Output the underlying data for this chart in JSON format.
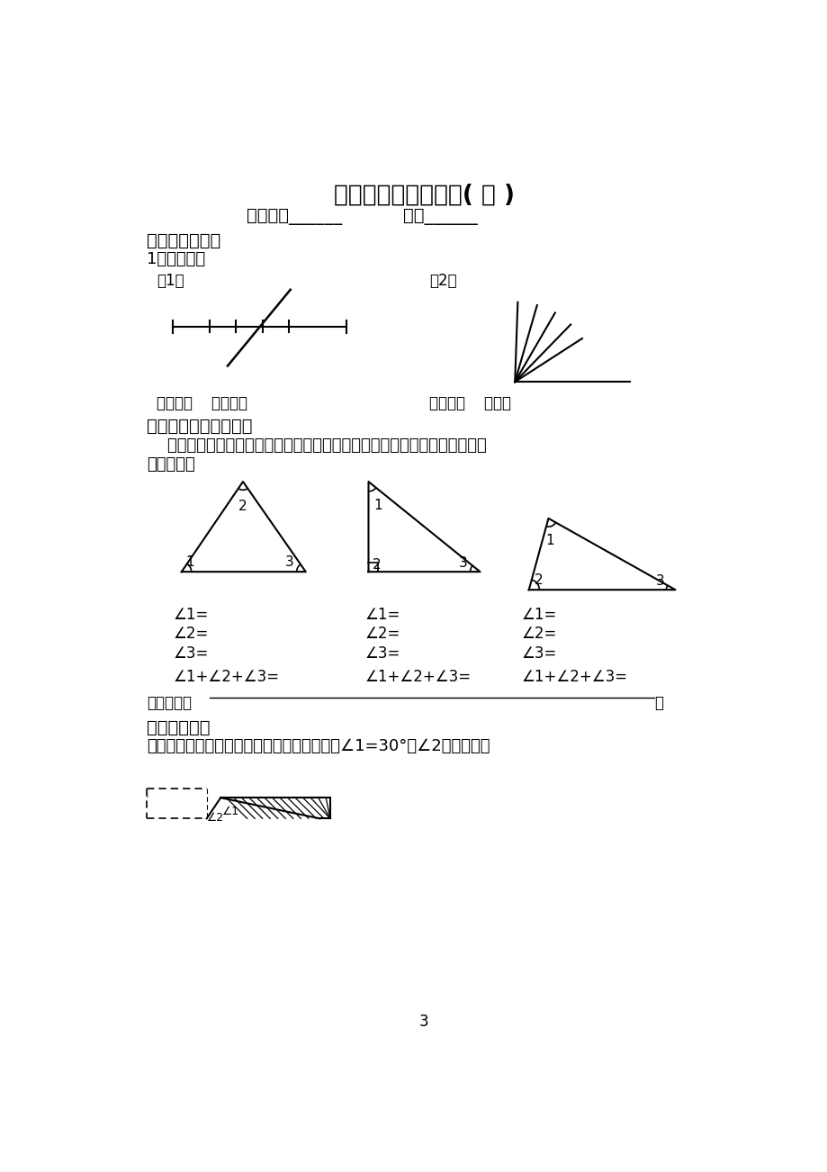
{
  "title": "四年级数学培优试题( 三 )",
  "subtitle_name": "学生姓名______",
  "subtitle_score": "分数______",
  "section1": "一、智力冲浪！",
  "q1": "1、数一数。",
  "q1_1": "（1）",
  "q1_2": "（2）",
  "q1_answer1": "一共有（    ）条线段",
  "q1_answer2": "一共有（    ）个角",
  "section2_bold": "二、动手做，动脑想。",
  "section2_desc": "    用量角器量出每个三角形中角的度数，再求出三个角的度数之和。你能发现",
  "section2_desc2": "什么规律？",
  "discovery": "我的发现：",
  "section3_bold": "二、我会想。",
  "section3_desc": "下面是一张长方形纸折起来形成的图形。已知∠1=30°，∠2是多少度？",
  "page_num": "3",
  "bg_color": "#ffffff",
  "text_color": "#000000"
}
